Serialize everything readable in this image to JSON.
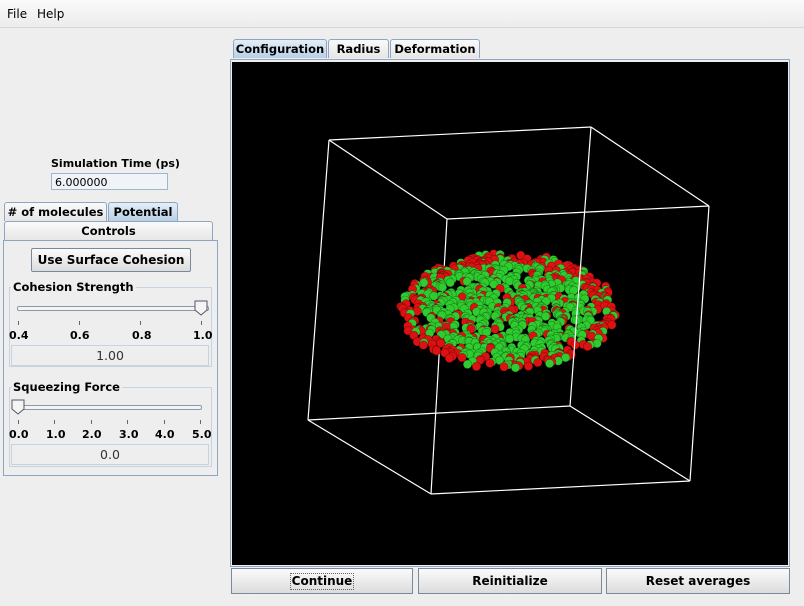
{
  "menu": {
    "items": [
      "File",
      "Help"
    ]
  },
  "simulation_time": {
    "label": "Simulation Time (ps)",
    "value": "6.000000"
  },
  "left_tabs": {
    "row1": [
      "# of molecules",
      "Potential"
    ],
    "row2": [
      "Controls"
    ]
  },
  "controls": {
    "cohesion_button": "Use Surface Cohesion",
    "cohesion": {
      "title": "Cohesion Strength",
      "ticks": [
        "0.4",
        "0.6",
        "0.8",
        "1.0"
      ],
      "value": "1.00",
      "level": 1.0
    },
    "squeeze": {
      "title": "Squeezing Force",
      "ticks": [
        "0.0",
        "1.0",
        "2.0",
        "3.0",
        "4.0",
        "5.0"
      ],
      "value": "0.0",
      "level": 0.0
    }
  },
  "display_tabs": [
    "Configuration",
    "Radius",
    "Deformation"
  ],
  "bottom_buttons": [
    "Continue",
    "Reinitialize",
    "Reset averages"
  ],
  "colors": {
    "molecule_a": "#2ecc2e",
    "molecule_b": "#dd1111",
    "box_edges": "#ffffff",
    "tab_selected": "#b8cfe5"
  },
  "icons": {
    "slider_thumb": "slider-thumb-icon"
  }
}
